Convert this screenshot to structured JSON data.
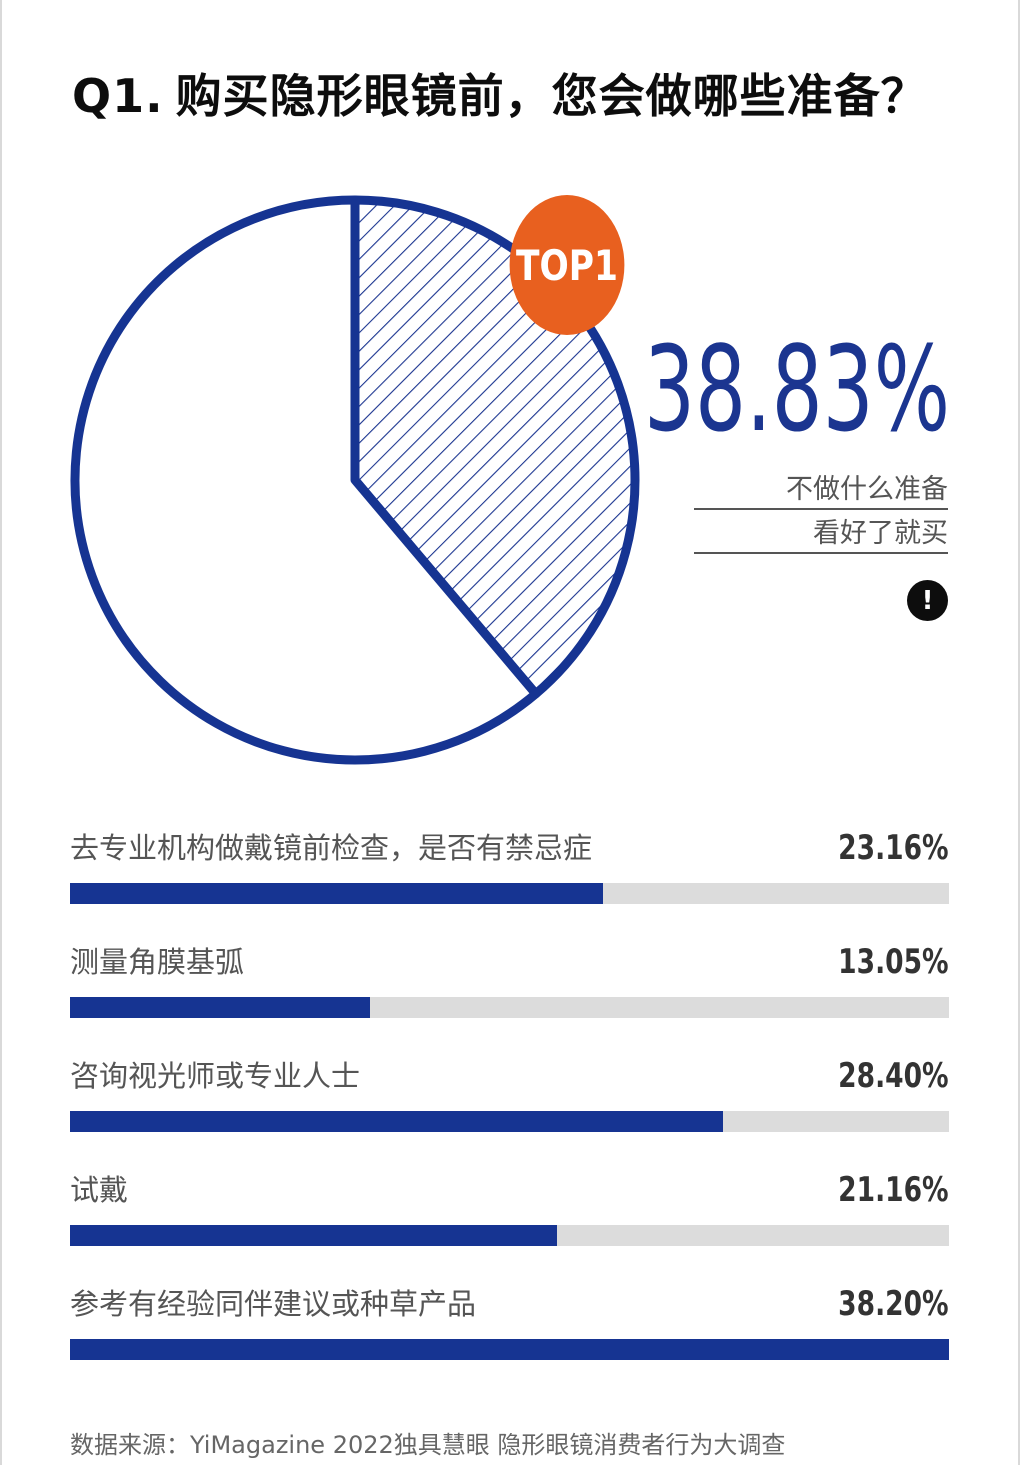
{
  "title": {
    "q_number": "Q1.",
    "text": "购买隐形眼镜前，您会做哪些准备？"
  },
  "pie": {
    "badge": "TOP1",
    "highlight_value": "38.83%",
    "note_lines": [
      "不做什么准备",
      "看好了就买"
    ],
    "alert_icon": "exclamation-icon"
  },
  "chart_data": [
    {
      "type": "pie",
      "slices": [
        {
          "label": "不做什么准备看好了就买",
          "value": 38.83,
          "style": "hatched"
        },
        {
          "label": "",
          "value": 61.17,
          "style": "blank"
        }
      ],
      "colors": {
        "outline": "#163492",
        "hatch": "#1b3590",
        "badge": "#e8601f"
      }
    },
    {
      "type": "bar",
      "orientation": "horizontal",
      "categories": [
        "去专业机构做戴镜前检查，是否有禁忌症",
        "测量角膜基弧",
        "咨询视光师或专业人士",
        "试戴",
        "参考有经验同伴建议或种草产品"
      ],
      "values": [
        23.16,
        13.05,
        28.4,
        21.16,
        38.2
      ],
      "value_labels": [
        "23.16%",
        "13.05%",
        "28.40%",
        "21.16%",
        "38.20%"
      ],
      "xlim": [
        0,
        38.2
      ],
      "colors": {
        "fill": "#163492",
        "track": "#dcdcdc"
      }
    }
  ],
  "source": "数据来源：YiMagazine 2022独具慧眼 隐形眼镜消费者行为大调查"
}
